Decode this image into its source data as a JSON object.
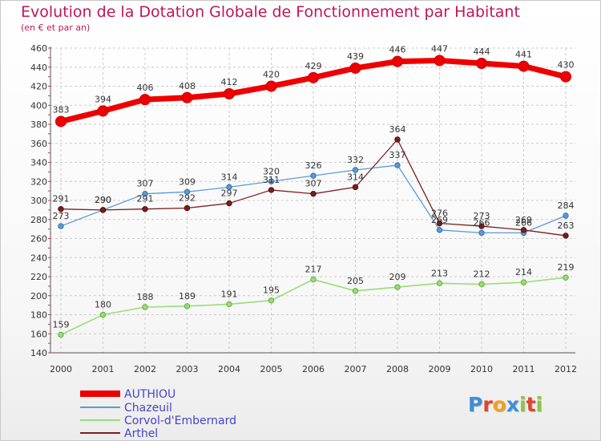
{
  "title": "Evolution de la Dotation Globale de Fonctionnement par Habitant",
  "subtitle": "(en € et par an)",
  "logo": {
    "text": "Proxiti",
    "letters": [
      "P",
      "r",
      "o",
      "x",
      "i",
      "t",
      "i"
    ],
    "colors": [
      "#3a8fd8",
      "#e0442b",
      "#f0a020",
      "#3a8fd8",
      "#8cc63e",
      "#e0442b",
      "#8cc63e"
    ]
  },
  "chart_data": {
    "type": "line",
    "title": "Evolution de la Dotation Globale de Fonctionnement par Habitant",
    "subtitle": "(en € et par an)",
    "x": [
      "2000",
      "2001",
      "2002",
      "2003",
      "2004",
      "2005",
      "2006",
      "2007",
      "2008",
      "2009",
      "2010",
      "2011",
      "2012"
    ],
    "ylim": [
      140,
      460
    ],
    "yticks": [
      140,
      160,
      180,
      200,
      220,
      240,
      260,
      280,
      300,
      320,
      340,
      360,
      380,
      400,
      420,
      440,
      460
    ],
    "grid": true,
    "legend_position": "bottom-left",
    "series": [
      {
        "name": "AUTHIOU",
        "color": "#ee0000",
        "values": [
          383,
          394,
          406,
          408,
          412,
          420,
          429,
          439,
          446,
          447,
          444,
          441,
          430
        ]
      },
      {
        "name": "Chazeuil",
        "color": "#5b9bd5",
        "values": [
          273,
          290,
          307,
          309,
          314,
          320,
          326,
          332,
          337,
          269,
          266,
          266,
          284
        ]
      },
      {
        "name": "Corvol-d'Embernard",
        "color": "#99dd77",
        "values": [
          159,
          180,
          188,
          189,
          191,
          195,
          217,
          205,
          209,
          213,
          212,
          214,
          219
        ]
      },
      {
        "name": "Arthel",
        "color": "#7a1f1f",
        "values": [
          291,
          290,
          291,
          292,
          297,
          311,
          307,
          314,
          364,
          276,
          273,
          269,
          263
        ]
      }
    ]
  }
}
